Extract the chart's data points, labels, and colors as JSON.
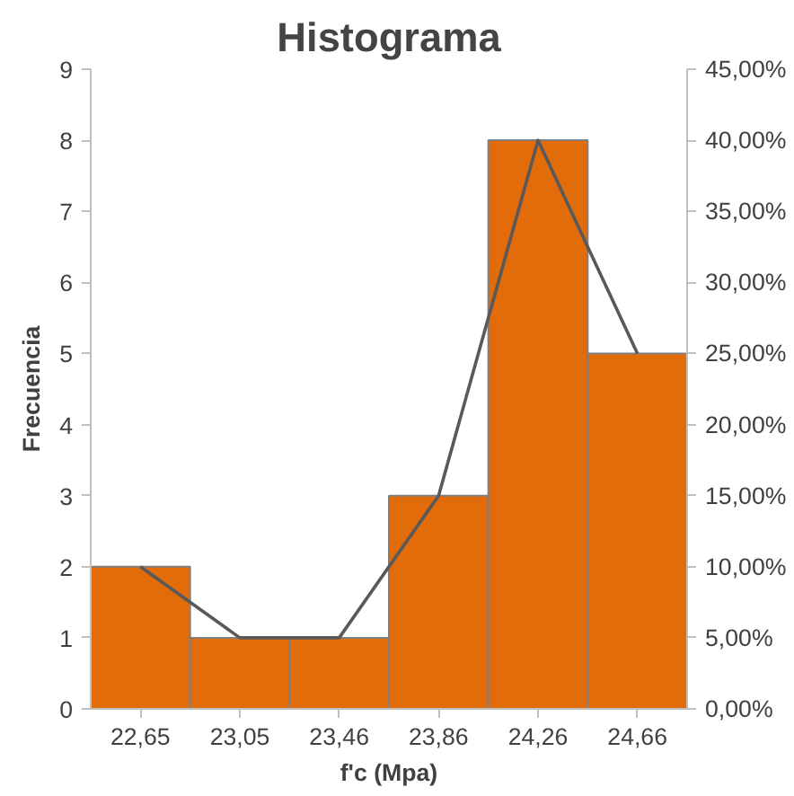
{
  "chart_data": {
    "type": "bar",
    "title": "Histograma",
    "xlabel": "f'c (Mpa)",
    "ylabel": "Frecuencia",
    "categories": [
      "22,65",
      "23,05",
      "23,46",
      "23,86",
      "24,26",
      "24,66"
    ],
    "series": [
      {
        "color": "#e36c0a",
        "values": [
          2,
          1,
          1,
          3,
          8,
          5
        ]
      },
      {
        "type": "line",
        "color": "#595959",
        "axis": "y2",
        "values": [
          10,
          5,
          5,
          15,
          40,
          25
        ]
      }
    ],
    "ylim": [
      0,
      9
    ],
    "yticks": [
      0,
      1,
      2,
      3,
      4,
      5,
      6,
      7,
      8,
      9
    ],
    "y2lim": [
      0,
      45
    ],
    "y2ticks": [
      {
        "value": 0,
        "label": "0,00%"
      },
      {
        "value": 5,
        "label": "5,00%"
      },
      {
        "value": 10,
        "label": "10,00%"
      },
      {
        "value": 15,
        "label": "15,00%"
      },
      {
        "value": 20,
        "label": "20,00%"
      },
      {
        "value": 25,
        "label": "25,00%"
      },
      {
        "value": 30,
        "label": "30,00%"
      },
      {
        "value": 35,
        "label": "35,00%"
      },
      {
        "value": 40,
        "label": "40,00%"
      },
      {
        "value": 45,
        "label": "45,00%"
      }
    ],
    "grid": false,
    "line_style": "solid",
    "marker": "none"
  }
}
